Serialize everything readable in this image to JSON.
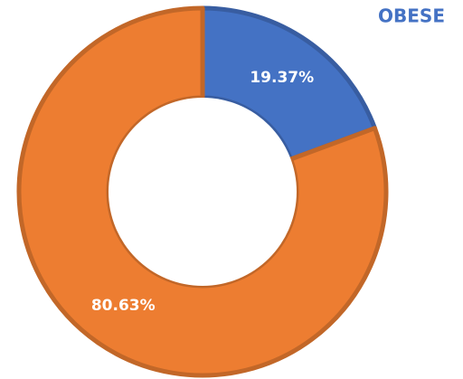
{
  "chart_data": {
    "type": "donut",
    "title": "OBESE",
    "values": [
      19.37,
      80.63
    ],
    "value_labels": [
      "19.37%",
      "80.63%"
    ],
    "colors": [
      "#4472c4",
      "#ed7d31"
    ]
  }
}
